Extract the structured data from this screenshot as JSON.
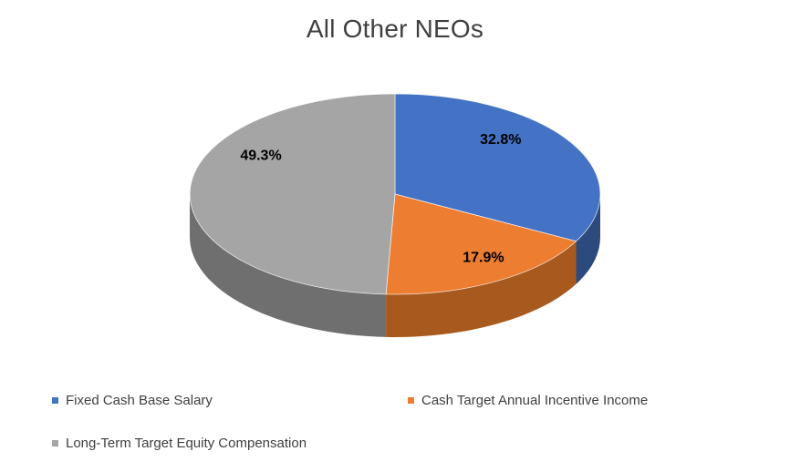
{
  "chart_data": {
    "type": "pie",
    "style": "3d",
    "title": "All Other NEOs",
    "categories": [
      "Fixed Cash Base Salary",
      "Cash Target Annual Incentive Income",
      "Long-Term Target Equity Compensation"
    ],
    "values": [
      32.8,
      17.9,
      49.3
    ],
    "data_labels": [
      "32.8%",
      "17.9%",
      "49.3%"
    ],
    "colors": [
      "#4472C4",
      "#ED7D31",
      "#A5A5A5"
    ],
    "side_colors": [
      "#2C4A7E",
      "#A85A1E",
      "#6F6F6F"
    ],
    "start_angle_deg": 0,
    "direction": "clockwise",
    "legend_position": "bottom",
    "title_color": "#404040",
    "label_color": "#000000",
    "legend_text_color": "#404040",
    "background": "#FFFFFF"
  }
}
